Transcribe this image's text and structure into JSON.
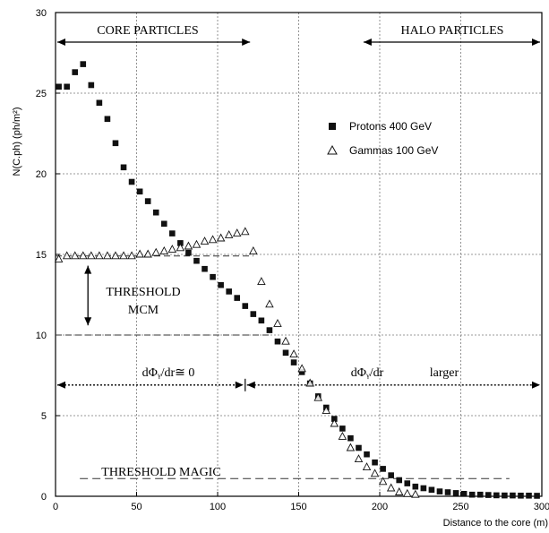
{
  "chart_data": {
    "type": "scatter",
    "ylabel": "N(C.ph) (ph/m²)",
    "xlabel": "Distance to the core (m)",
    "xlim": [
      0,
      300
    ],
    "ylim": [
      0,
      30
    ],
    "x_ticks": [
      0,
      50,
      100,
      150,
      200,
      250,
      300
    ],
    "y_ticks": [
      0,
      5,
      10,
      15,
      20,
      25,
      30
    ],
    "grid": true,
    "legend_position": "top-right",
    "series": [
      {
        "name": "Protons 400 GeV",
        "marker": "filled-square",
        "points": [
          [
            2,
            25.4
          ],
          [
            7,
            25.4
          ],
          [
            12,
            26.3
          ],
          [
            17,
            26.8
          ],
          [
            22,
            25.5
          ],
          [
            27,
            24.4
          ],
          [
            32,
            23.4
          ],
          [
            37,
            21.9
          ],
          [
            42,
            20.4
          ],
          [
            47,
            19.5
          ],
          [
            52,
            18.9
          ],
          [
            57,
            18.3
          ],
          [
            62,
            17.6
          ],
          [
            67,
            16.9
          ],
          [
            72,
            16.3
          ],
          [
            77,
            15.7
          ],
          [
            82,
            15.1
          ],
          [
            87,
            14.6
          ],
          [
            92,
            14.1
          ],
          [
            97,
            13.6
          ],
          [
            102,
            13.1
          ],
          [
            107,
            12.7
          ],
          [
            112,
            12.3
          ],
          [
            117,
            11.8
          ],
          [
            122,
            11.3
          ],
          [
            127,
            10.9
          ],
          [
            132,
            10.3
          ],
          [
            137,
            9.6
          ],
          [
            142,
            8.9
          ],
          [
            147,
            8.3
          ],
          [
            152,
            7.7
          ],
          [
            157,
            7.0
          ],
          [
            162,
            6.2
          ],
          [
            167,
            5.5
          ],
          [
            172,
            4.8
          ],
          [
            177,
            4.2
          ],
          [
            182,
            3.6
          ],
          [
            187,
            3.0
          ],
          [
            192,
            2.6
          ],
          [
            197,
            2.1
          ],
          [
            202,
            1.7
          ],
          [
            207,
            1.3
          ],
          [
            212,
            1.0
          ],
          [
            217,
            0.8
          ],
          [
            222,
            0.6
          ],
          [
            227,
            0.5
          ],
          [
            232,
            0.4
          ],
          [
            237,
            0.3
          ],
          [
            242,
            0.25
          ],
          [
            247,
            0.2
          ],
          [
            252,
            0.15
          ],
          [
            257,
            0.1
          ],
          [
            262,
            0.1
          ],
          [
            267,
            0.08
          ],
          [
            272,
            0.06
          ],
          [
            277,
            0.05
          ],
          [
            282,
            0.05
          ],
          [
            287,
            0.04
          ],
          [
            292,
            0.04
          ],
          [
            297,
            0.03
          ]
        ]
      },
      {
        "name": "Gammas 100 GeV",
        "marker": "open-triangle",
        "points": [
          [
            2,
            14.7
          ],
          [
            7,
            14.9
          ],
          [
            12,
            14.9
          ],
          [
            17,
            14.9
          ],
          [
            22,
            14.9
          ],
          [
            27,
            14.9
          ],
          [
            32,
            14.9
          ],
          [
            37,
            14.9
          ],
          [
            42,
            14.9
          ],
          [
            47,
            14.9
          ],
          [
            52,
            15.0
          ],
          [
            57,
            15.0
          ],
          [
            62,
            15.1
          ],
          [
            67,
            15.2
          ],
          [
            72,
            15.3
          ],
          [
            77,
            15.4
          ],
          [
            82,
            15.5
          ],
          [
            87,
            15.6
          ],
          [
            92,
            15.8
          ],
          [
            97,
            15.9
          ],
          [
            102,
            16.0
          ],
          [
            107,
            16.2
          ],
          [
            112,
            16.3
          ],
          [
            117,
            16.4
          ],
          [
            122,
            15.2
          ],
          [
            127,
            13.3
          ],
          [
            132,
            11.9
          ],
          [
            137,
            10.7
          ],
          [
            142,
            9.6
          ],
          [
            147,
            8.8
          ],
          [
            152,
            7.9
          ],
          [
            157,
            7.0
          ],
          [
            162,
            6.1
          ],
          [
            167,
            5.3
          ],
          [
            172,
            4.5
          ],
          [
            177,
            3.7
          ],
          [
            182,
            3.0
          ],
          [
            187,
            2.3
          ],
          [
            192,
            1.8
          ],
          [
            197,
            1.4
          ],
          [
            202,
            0.9
          ],
          [
            207,
            0.5
          ],
          [
            212,
            0.25
          ],
          [
            217,
            0.15
          ],
          [
            222,
            0.1
          ]
        ]
      }
    ],
    "annotations": {
      "core_particles": "CORE PARTICLES",
      "halo_particles": "HALO PARTICLES",
      "threshold_mcm_line1": "THRESHOLD",
      "threshold_mcm_line2": "MCM",
      "threshold_magic": "THRESHOLD MAGIC",
      "dphi_zero": "dΦᵧ/dr≅  0",
      "dphi_larger_1": "dΦᵧ/dr",
      "dphi_larger_2": "larger"
    },
    "reference_lines": {
      "mcm_upper_y": 14.9,
      "mcm_lower_y": 10.0,
      "magic_y": 1.1,
      "flux_arrow_y": 6.9,
      "flux_divider_x": 117
    }
  }
}
